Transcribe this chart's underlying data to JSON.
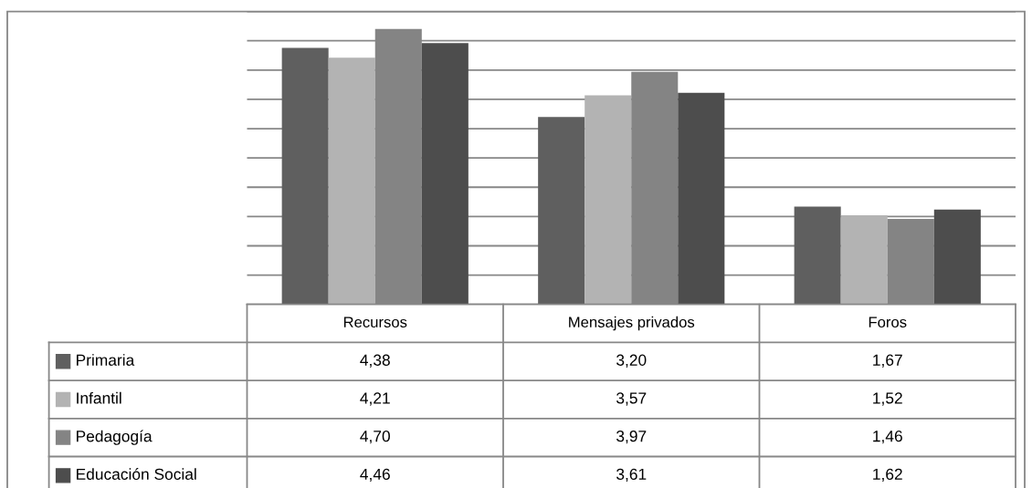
{
  "chart_data": {
    "type": "bar",
    "categories": [
      "Recursos",
      "Mensajes privados",
      "Foros"
    ],
    "series": [
      {
        "name": "Primaria",
        "color": "#5f5f5f",
        "values": [
          4.38,
          3.2,
          1.67
        ],
        "value_labels": [
          "4,38",
          "3,20",
          "1,67"
        ]
      },
      {
        "name": "Infantil",
        "color": "#b3b3b3",
        "values": [
          4.21,
          3.57,
          1.52
        ],
        "value_labels": [
          "4,21",
          "3,57",
          "1,52"
        ]
      },
      {
        "name": "Pedagogía",
        "color": "#848484",
        "values": [
          4.7,
          3.97,
          1.46
        ],
        "value_labels": [
          "4,70",
          "3,97",
          "1,46"
        ]
      },
      {
        "name": "Educación Social",
        "color": "#4d4d4d",
        "values": [
          4.46,
          3.61,
          1.62
        ],
        "value_labels": [
          "4,46",
          "3,61",
          "1,62"
        ]
      }
    ],
    "ylim": [
      0,
      5
    ],
    "yticks": [
      {
        "value": 0,
        "label": null
      },
      {
        "value": 0.5,
        "label": null
      },
      {
        "value": 1,
        "label": null
      },
      {
        "value": 1.5,
        "label": null
      },
      {
        "value": 2,
        "label": null
      },
      {
        "value": 2.5,
        "label": null
      },
      {
        "value": 3,
        "label": null
      },
      {
        "value": 3.5,
        "label": null
      },
      {
        "value": 4,
        "label": null
      },
      {
        "value": 4.5,
        "label": null
      },
      {
        "value": 5,
        "label": null
      }
    ],
    "grid": "y",
    "legend": "bottom left"
  }
}
